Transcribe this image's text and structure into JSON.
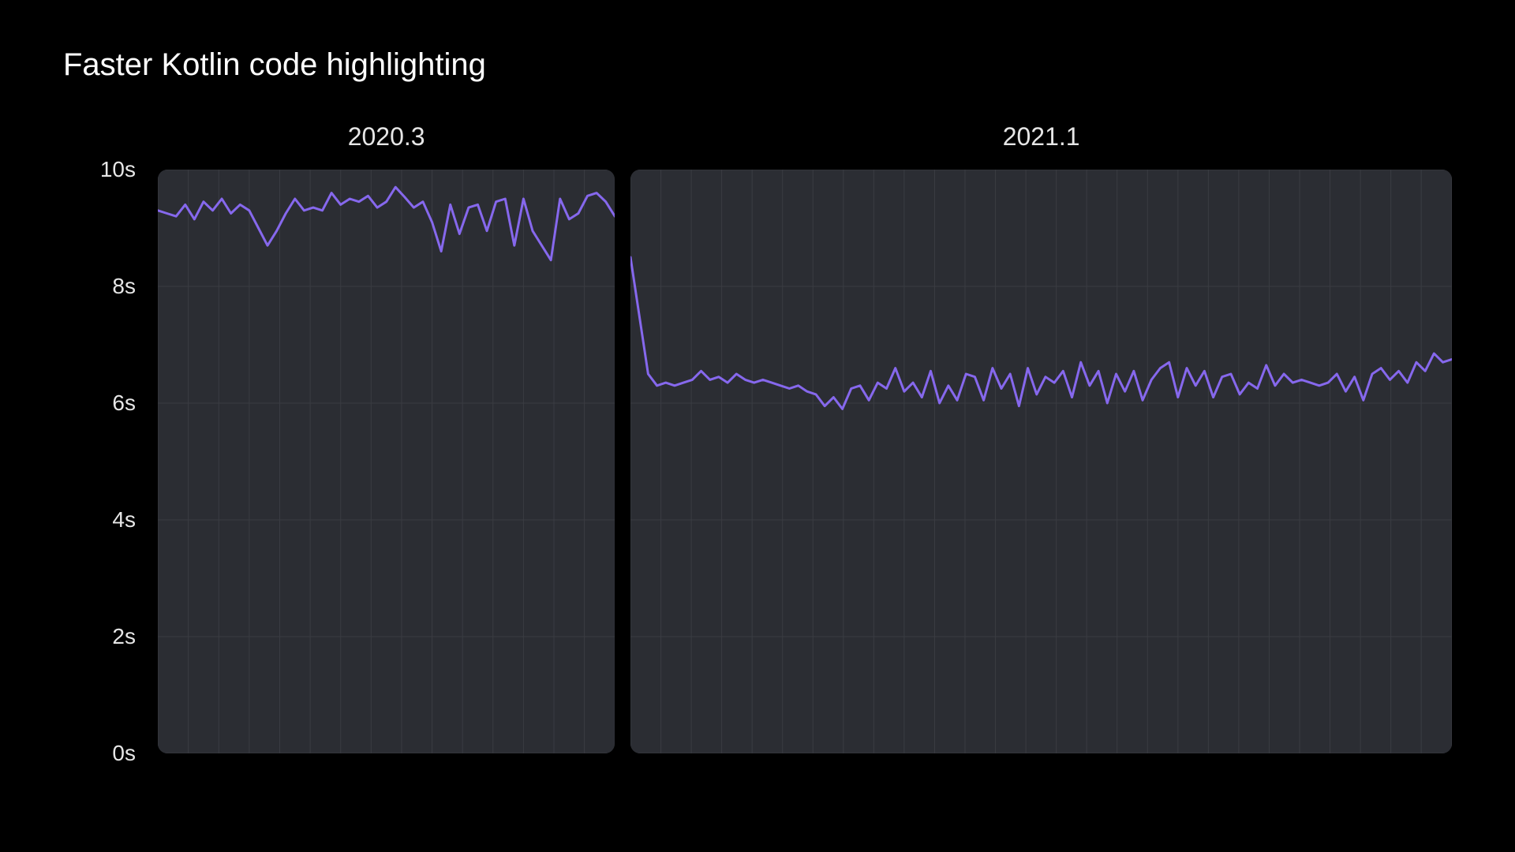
{
  "title": "Faster Kotlin code highlighting",
  "background_color": "#000000",
  "text_color": "#ffffff",
  "chart": {
    "type": "line",
    "line_color": "#8668ed",
    "line_width": 3,
    "panel_bg": "#2b2d33",
    "panel_radius": 12,
    "grid_color": "#3a3c42",
    "ylim": [
      0,
      10
    ],
    "ytick_step": 2,
    "ytick_labels": [
      "0s",
      "2s",
      "4s",
      "6s",
      "8s",
      "10s"
    ],
    "tick_fontsize": 28,
    "title_fontsize": 40,
    "panel_title_fontsize": 32,
    "panels": [
      {
        "label": "2020.3",
        "x_grid_count": 15,
        "values": [
          9.3,
          9.25,
          9.2,
          9.4,
          9.15,
          9.45,
          9.3,
          9.5,
          9.25,
          9.4,
          9.3,
          9.0,
          8.7,
          8.95,
          9.25,
          9.5,
          9.3,
          9.35,
          9.3,
          9.6,
          9.4,
          9.5,
          9.45,
          9.55,
          9.35,
          9.45,
          9.7,
          9.53,
          9.35,
          9.45,
          9.1,
          8.6,
          9.4,
          8.9,
          9.35,
          9.4,
          8.95,
          9.45,
          9.5,
          8.7,
          9.5,
          8.95,
          8.7,
          8.45,
          9.5,
          9.15,
          9.25,
          9.55,
          9.6,
          9.45,
          9.2
        ]
      },
      {
        "label": "2021.1",
        "x_grid_count": 27,
        "values": [
          8.5,
          7.5,
          6.5,
          6.3,
          6.35,
          6.3,
          6.35,
          6.4,
          6.55,
          6.4,
          6.45,
          6.35,
          6.5,
          6.4,
          6.35,
          6.4,
          6.35,
          6.3,
          6.25,
          6.3,
          6.2,
          6.15,
          5.95,
          6.1,
          5.9,
          6.25,
          6.3,
          6.05,
          6.35,
          6.25,
          6.6,
          6.2,
          6.35,
          6.1,
          6.55,
          6.0,
          6.3,
          6.05,
          6.5,
          6.45,
          6.05,
          6.6,
          6.25,
          6.5,
          5.95,
          6.6,
          6.15,
          6.45,
          6.35,
          6.55,
          6.1,
          6.7,
          6.3,
          6.55,
          6.0,
          6.5,
          6.2,
          6.55,
          6.05,
          6.4,
          6.6,
          6.7,
          6.1,
          6.6,
          6.3,
          6.55,
          6.1,
          6.45,
          6.5,
          6.15,
          6.35,
          6.25,
          6.65,
          6.3,
          6.5,
          6.35,
          6.4,
          6.35,
          6.3,
          6.35,
          6.5,
          6.2,
          6.45,
          6.05,
          6.5,
          6.6,
          6.4,
          6.55,
          6.35,
          6.7,
          6.55,
          6.85,
          6.7,
          6.75
        ]
      }
    ]
  }
}
